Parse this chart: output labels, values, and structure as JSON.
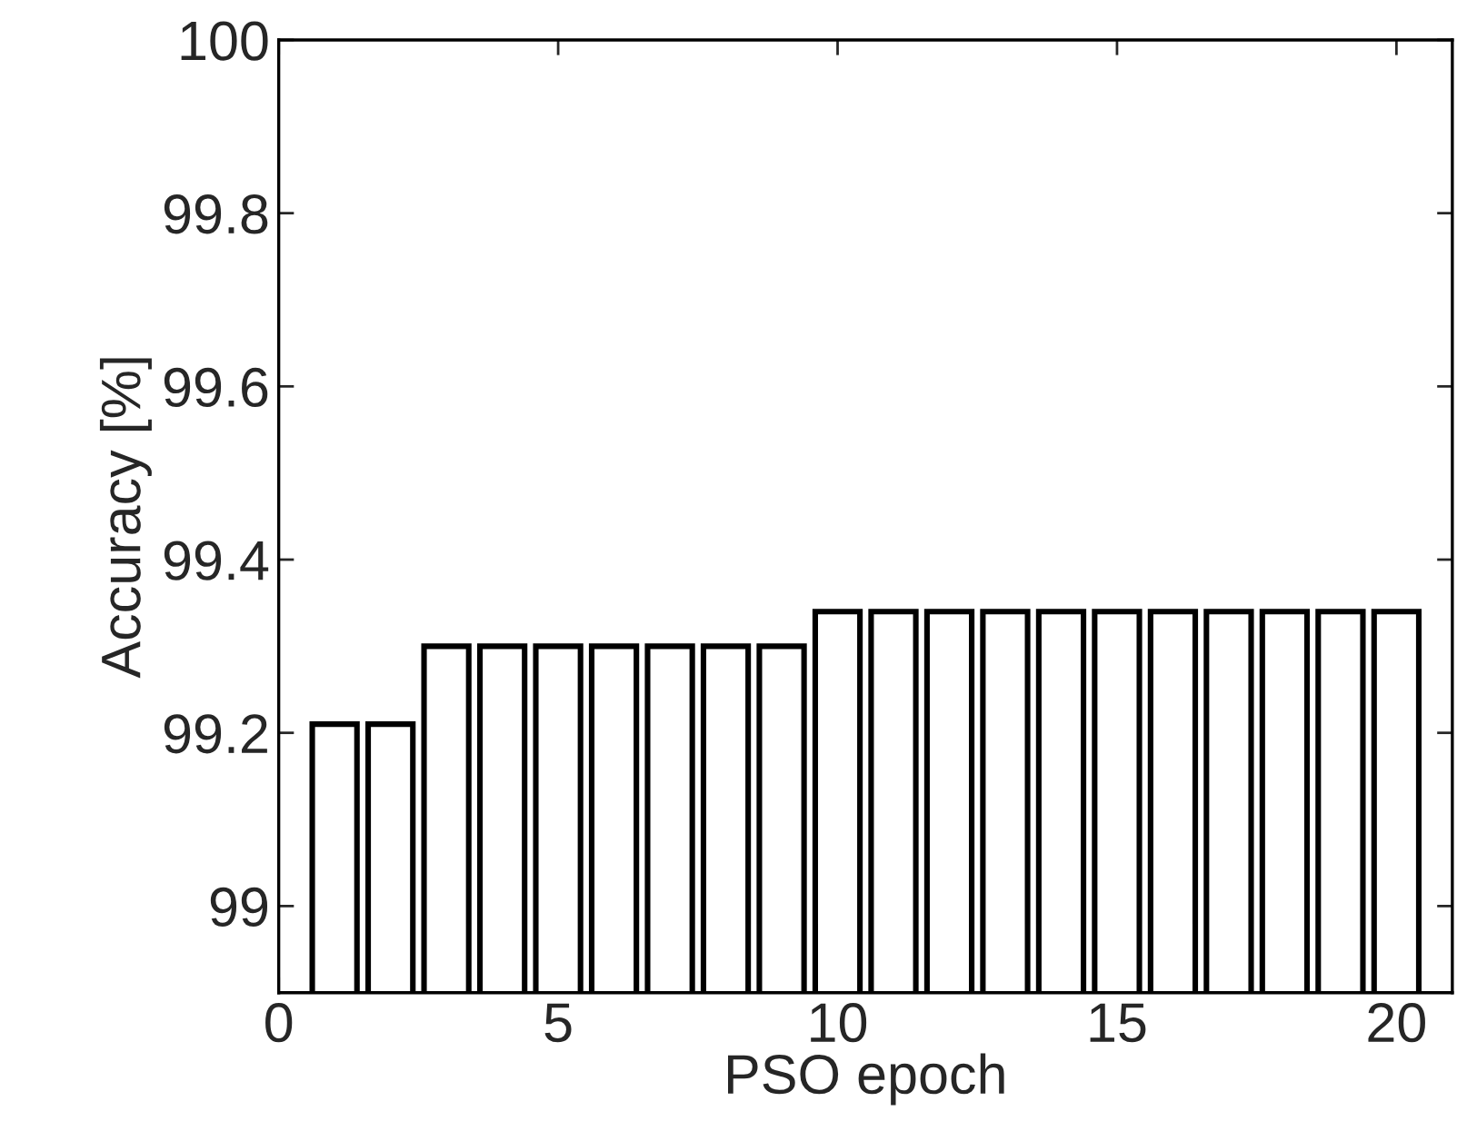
{
  "chart_data": {
    "type": "bar",
    "xlabel": "PSO epoch",
    "ylabel": "Accuracy [%]",
    "x": [
      1,
      2,
      3,
      4,
      5,
      6,
      7,
      8,
      9,
      10,
      11,
      12,
      13,
      14,
      15,
      16,
      17,
      18,
      19,
      20
    ],
    "series": [
      {
        "color": "#ffffff",
        "values": [
          99.21,
          99.21,
          99.3,
          99.3,
          99.3,
          99.3,
          99.3,
          99.3,
          99.3,
          99.34,
          99.34,
          99.34,
          99.34,
          99.34,
          99.34,
          99.34,
          99.34,
          99.34,
          99.34,
          99.34
        ]
      }
    ],
    "xlim": [
      0,
      21
    ],
    "xticks": [
      0,
      5,
      10,
      15,
      20
    ],
    "ylim": [
      98.9,
      100
    ],
    "yticks": [
      99,
      99.2,
      99.4,
      99.6,
      99.8,
      100
    ],
    "grid": false,
    "legend": false
  }
}
